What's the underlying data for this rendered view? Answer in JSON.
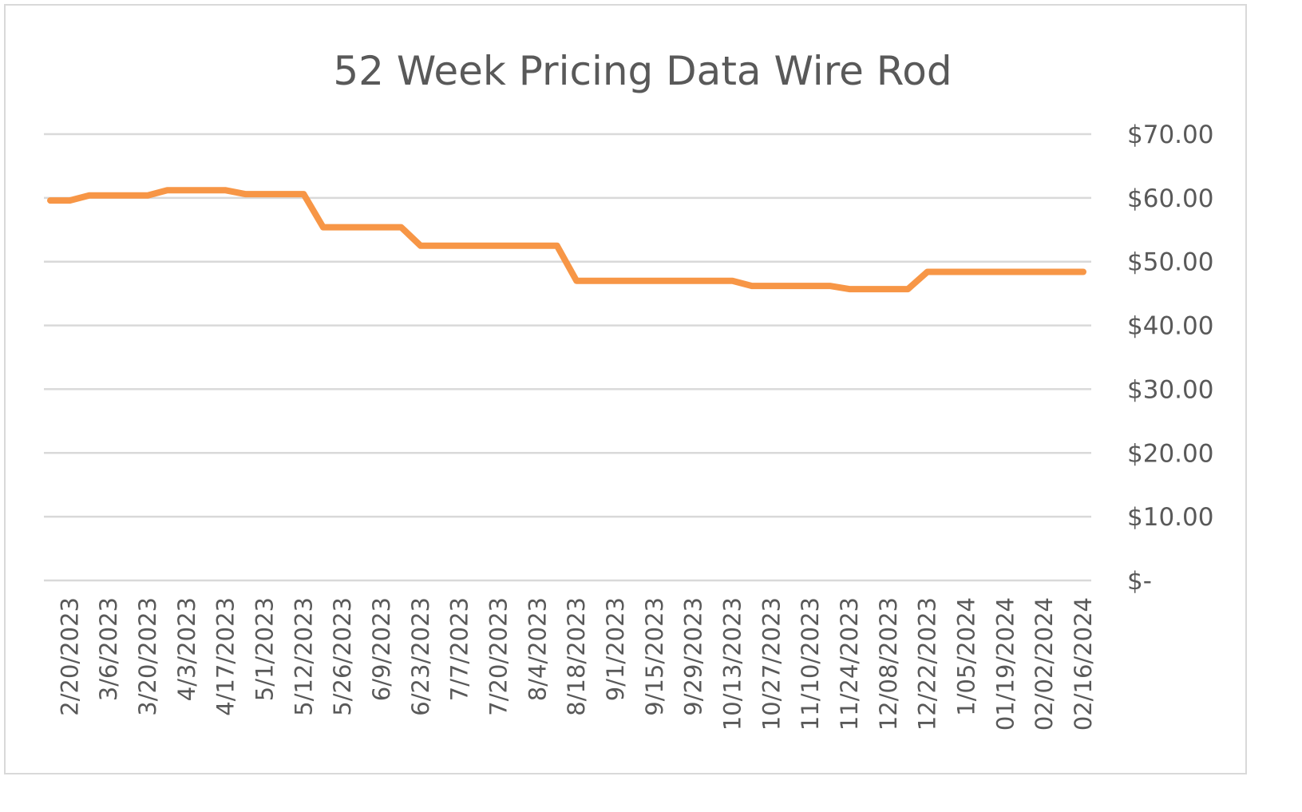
{
  "chart_data": {
    "type": "line",
    "title": "52 Week Pricing Data Wire Rod",
    "xlabel": "",
    "ylabel": "",
    "ylim": [
      0,
      70
    ],
    "grid": true,
    "legend": "none",
    "y_axis_position": "right",
    "line_color": "#f79646",
    "y_ticks": [
      {
        "value": 70,
        "label": "$70.00"
      },
      {
        "value": 60,
        "label": "$60.00"
      },
      {
        "value": 50,
        "label": "$50.00"
      },
      {
        "value": 40,
        "label": "$40.00"
      },
      {
        "value": 30,
        "label": "$30.00"
      },
      {
        "value": 20,
        "label": "$20.00"
      },
      {
        "value": 10,
        "label": "$10.00"
      },
      {
        "value": 0,
        "label": "$-"
      }
    ],
    "x_tick_labels": [
      "2/20/2023",
      "3/6/2023",
      "3/20/2023",
      "4/3/2023",
      "4/17/2023",
      "5/1/2023",
      "5/12/2023",
      "5/26/2023",
      "6/9/2023",
      "6/23/2023",
      "7/7/2023",
      "7/20/2023",
      "8/4/2023",
      "8/18/2023",
      "9/1/2023",
      "9/15/2023",
      "9/29/2023",
      "10/13/2023",
      "10/27/2023",
      "11/10/2023",
      "11/24/2023",
      "12/08/2023",
      "12/22/2023",
      "1/05/2024",
      "01/19/2024",
      "02/02/2024",
      "02/16/2024"
    ],
    "values": [
      59.6,
      59.6,
      60.4,
      60.4,
      60.4,
      60.4,
      61.2,
      61.2,
      61.2,
      61.2,
      60.6,
      60.6,
      60.6,
      60.6,
      55.4,
      55.4,
      55.4,
      55.4,
      55.4,
      52.5,
      52.5,
      52.5,
      52.5,
      52.5,
      52.5,
      52.5,
      52.5,
      47.0,
      47.0,
      47.0,
      47.0,
      47.0,
      47.0,
      47.0,
      47.0,
      47.0,
      46.2,
      46.2,
      46.2,
      46.2,
      46.2,
      45.7,
      45.7,
      45.7,
      45.7,
      48.4,
      48.4,
      48.4,
      48.4,
      48.4,
      48.4,
      48.4,
      48.4,
      48.4
    ]
  }
}
